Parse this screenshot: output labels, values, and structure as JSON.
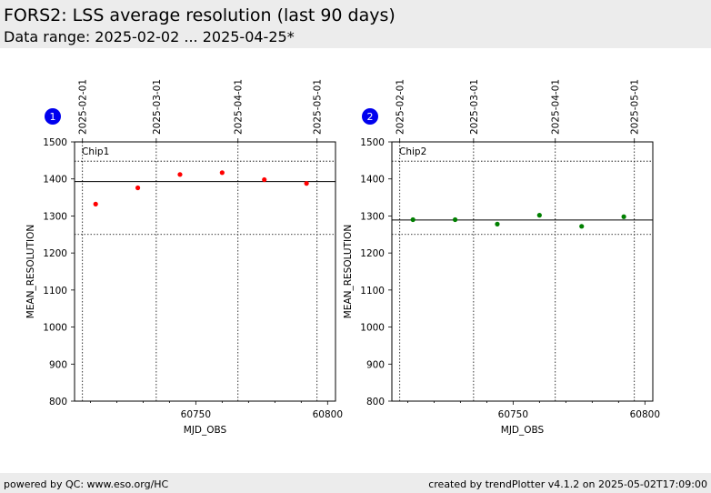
{
  "header": {
    "title": "FORS2: LSS average resolution (last 90 days)",
    "subtitle": "Data range: 2025-02-02 ... 2025-04-25*"
  },
  "footer": {
    "left": "powered by QC: www.eso.org/HC",
    "right": "created by trendPlotter v4.1.2 on 2025-05-02T17:09:00"
  },
  "chart_data": [
    {
      "type": "scatter",
      "badge": "1",
      "title": "Chip1",
      "xlabel": "MJD_OBS",
      "ylabel": "MEAN_RESOLUTION",
      "xlim": [
        60704,
        60803
      ],
      "ylim": [
        800,
        1500
      ],
      "xticks": [
        60750,
        60800
      ],
      "yticks": [
        800,
        900,
        1000,
        1100,
        1200,
        1300,
        1400,
        1500
      ],
      "date_ticks": [
        {
          "label": "2025-02-01",
          "mjd": 60707
        },
        {
          "label": "2025-03-01",
          "mjd": 60735
        },
        {
          "label": "2025-04-01",
          "mjd": 60766
        },
        {
          "label": "2025-05-01",
          "mjd": 60796
        }
      ],
      "reference_lines": {
        "mean": 1393,
        "upper": 1448,
        "lower": 1250
      },
      "color": "#ff0000",
      "points": [
        {
          "x": 60712,
          "y": 1332
        },
        {
          "x": 60728,
          "y": 1376
        },
        {
          "x": 60744,
          "y": 1412
        },
        {
          "x": 60760,
          "y": 1417
        },
        {
          "x": 60776,
          "y": 1398
        },
        {
          "x": 60792,
          "y": 1388
        }
      ]
    },
    {
      "type": "scatter",
      "badge": "2",
      "title": "Chip2",
      "xlabel": "MJD_OBS",
      "ylabel": "MEAN_RESOLUTION",
      "xlim": [
        60704,
        60803
      ],
      "ylim": [
        800,
        1500
      ],
      "xticks": [
        60750,
        60800
      ],
      "yticks": [
        800,
        900,
        1000,
        1100,
        1200,
        1300,
        1400,
        1500
      ],
      "date_ticks": [
        {
          "label": "2025-02-01",
          "mjd": 60707
        },
        {
          "label": "2025-03-01",
          "mjd": 60735
        },
        {
          "label": "2025-04-01",
          "mjd": 60766
        },
        {
          "label": "2025-05-01",
          "mjd": 60796
        }
      ],
      "reference_lines": {
        "mean": 1289,
        "upper": 1448,
        "lower": 1250
      },
      "color": "#008000",
      "points": [
        {
          "x": 60712,
          "y": 1290
        },
        {
          "x": 60728,
          "y": 1290
        },
        {
          "x": 60744,
          "y": 1278
        },
        {
          "x": 60760,
          "y": 1302
        },
        {
          "x": 60776,
          "y": 1272
        },
        {
          "x": 60792,
          "y": 1298
        }
      ]
    }
  ]
}
